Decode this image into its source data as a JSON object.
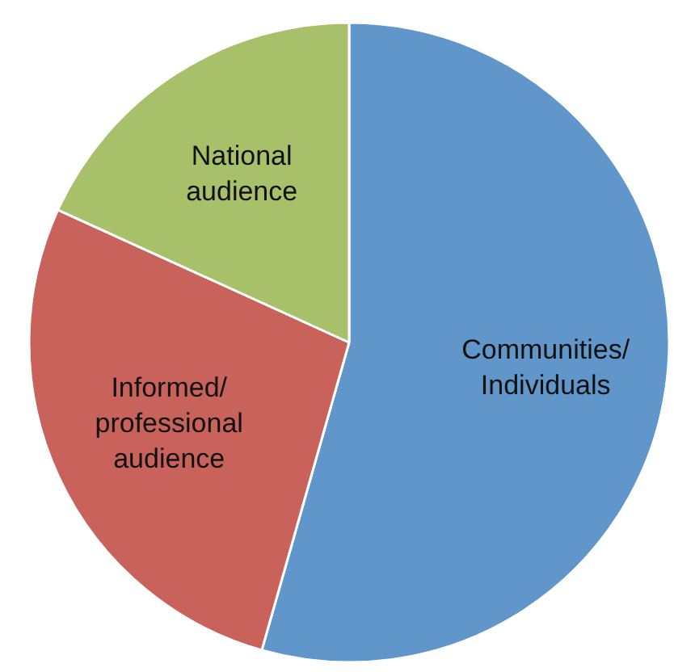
{
  "chart_data": {
    "type": "pie",
    "categories": [
      "Communities/\nIndividuals",
      "Informed/\nprofessional\naudience",
      "National\naudience"
    ],
    "values": [
      54.4,
      27.4,
      18.2
    ],
    "colors": [
      "#6096c9",
      "#c9625a",
      "#a8c06a"
    ]
  }
}
